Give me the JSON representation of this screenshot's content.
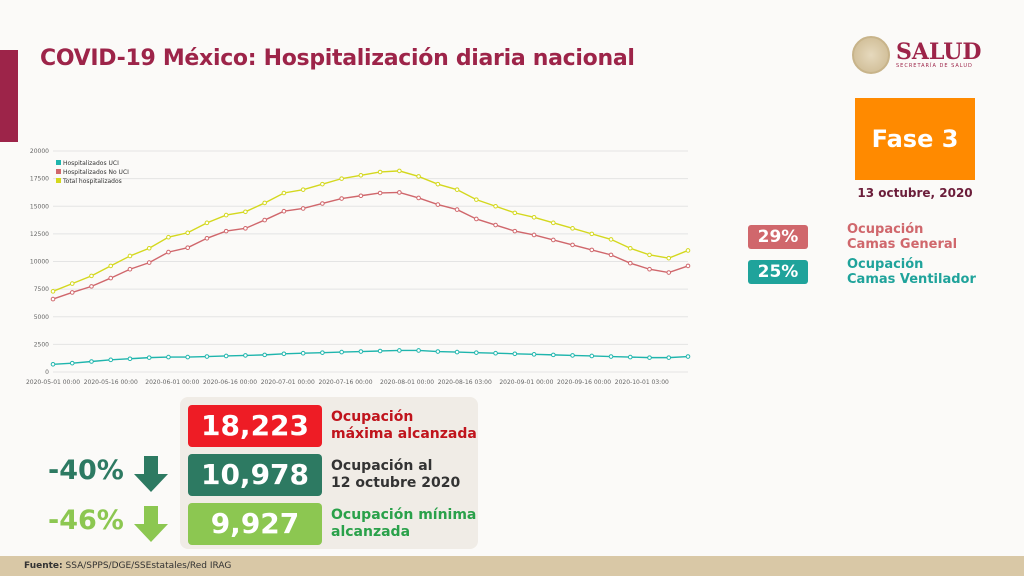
{
  "title": "COVID-19 México: Hospitalización diaria nacional",
  "logo": {
    "name": "SALUD",
    "subtitle": "SECRETARÍA DE SALUD"
  },
  "phase": {
    "label": "Fase 3",
    "date": "13 octubre, 2020",
    "color": "#ff8a00"
  },
  "occupancy": [
    {
      "value": "29%",
      "label1": "Ocupación",
      "label2": "Camas General",
      "color": "#d0676c"
    },
    {
      "value": "25%",
      "label1": "Ocupación",
      "label2": "Camas Ventilador",
      "color": "#1fa39b"
    }
  ],
  "summary": [
    {
      "value": "18,223",
      "label1": "Ocupación",
      "label2": "máxima alcanzada",
      "color": "#ee1c25",
      "text_color": "#c0141c",
      "change": ""
    },
    {
      "value": "10,978",
      "label1": "Ocupación al",
      "label2": "12 octubre 2020",
      "color": "#2d7a62",
      "text_color": "#333333",
      "change": "-40%"
    },
    {
      "value": "9,927",
      "label1": "Ocupación mínima",
      "label2": "alcanzada",
      "color": "#8cc751",
      "text_color": "#2aa14a",
      "change": "-46%"
    }
  ],
  "footer": {
    "label": "Fuente:",
    "text": "SSA/SPPS/DGE/SSEstatales/Red IRAG"
  },
  "chart_data": {
    "type": "line",
    "title": "",
    "xlabel": "",
    "ylabel": "",
    "ylim": [
      0,
      20000
    ],
    "yticks": [
      0,
      2500,
      5000,
      7500,
      10000,
      12500,
      15000,
      17500,
      20000
    ],
    "xlim_days": [
      0,
      165
    ],
    "xticks": [
      {
        "day": 0,
        "label": "2020-05-01 00:00"
      },
      {
        "day": 15,
        "label": "2020-05-16 00:00"
      },
      {
        "day": 31,
        "label": "2020-06-01 00:00"
      },
      {
        "day": 46,
        "label": "2020-06-16 00:00"
      },
      {
        "day": 61,
        "label": "2020-07-01 00:00"
      },
      {
        "day": 76,
        "label": "2020-07-16 00:00"
      },
      {
        "day": 92,
        "label": "2020-08-01 00:00"
      },
      {
        "day": 107,
        "label": "2020-08-16 03:00"
      },
      {
        "day": 123,
        "label": "2020-09-01 00:00"
      },
      {
        "day": 138,
        "label": "2020-09-16 00:00"
      },
      {
        "day": 153,
        "label": "2020-10-01 03:00"
      }
    ],
    "x_days_step": 5,
    "grid": true,
    "legend": "top-left",
    "series": [
      {
        "name": "Hospitalizados UCI",
        "color": "#1fb5ad",
        "values": [
          700,
          800,
          950,
          1100,
          1200,
          1300,
          1350,
          1350,
          1400,
          1450,
          1500,
          1550,
          1650,
          1700,
          1750,
          1800,
          1850,
          1900,
          1950,
          1950,
          1850,
          1800,
          1750,
          1700,
          1650,
          1600,
          1550,
          1500,
          1450,
          1400,
          1350,
          1300,
          1300,
          1400
        ]
      },
      {
        "name": "Hospitalizados No UCI",
        "color": "#d0676c",
        "values": [
          6600,
          7200,
          7750,
          8500,
          9300,
          9900,
          10850,
          11250,
          12100,
          12750,
          13000,
          13750,
          14550,
          14800,
          15250,
          15700,
          15950,
          16200,
          16250,
          15750,
          15150,
          14700,
          13850,
          13300,
          12750,
          12400,
          11950,
          11500,
          11050,
          10600,
          9850,
          9300,
          9000,
          9600
        ]
      },
      {
        "name": "Total hospitalizados",
        "color": "#d4d81e",
        "values": [
          7300,
          8000,
          8700,
          9600,
          10500,
          11200,
          12200,
          12600,
          13500,
          14200,
          14500,
          15300,
          16200,
          16500,
          17000,
          17500,
          17800,
          18100,
          18200,
          17700,
          17000,
          16500,
          15600,
          15000,
          14400,
          14000,
          13500,
          13000,
          12500,
          12000,
          11200,
          10600,
          10300,
          11000
        ]
      }
    ]
  }
}
